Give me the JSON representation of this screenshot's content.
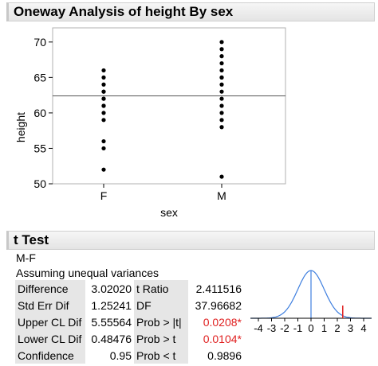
{
  "report": {
    "title": "Oneway Analysis of height By sex"
  },
  "plot": {
    "ylabel": "height",
    "xlabel": "sex",
    "categories": [
      "F",
      "M"
    ],
    "yticks": [
      "50",
      "55",
      "60",
      "65",
      "70"
    ]
  },
  "chart_data": {
    "type": "scatter",
    "title": "",
    "xlabel": "sex",
    "ylabel": "height",
    "ylim": [
      50,
      72
    ],
    "categories": [
      "F",
      "M"
    ],
    "series": [
      {
        "x": "F",
        "values": [
          52,
          55,
          56,
          59,
          60,
          61,
          61,
          62,
          62,
          63,
          63,
          64,
          65,
          66
        ]
      },
      {
        "x": "M",
        "values": [
          51,
          58,
          59,
          60,
          61,
          62,
          63,
          64,
          65,
          65,
          66,
          67,
          68,
          69,
          70
        ]
      }
    ],
    "grand_mean_line": 62.4
  },
  "ttest": {
    "title": "t Test",
    "contrast": "M-F",
    "assumption": "Assuming unequal variances",
    "rows": [
      {
        "label": "Difference",
        "value": "3.02020",
        "label2": "t Ratio",
        "value2": "2.411516",
        "sig": false
      },
      {
        "label": "Std Err Dif",
        "value": "1.25241",
        "label2": "DF",
        "value2": "37.96682",
        "sig": false
      },
      {
        "label": "Upper CL Dif",
        "value": "5.55564",
        "label2": "Prob > |t|",
        "value2": "0.0208*",
        "sig": true
      },
      {
        "label": "Lower CL Dif",
        "value": "0.48476",
        "label2": "Prob > t",
        "value2": "0.0104*",
        "sig": true
      },
      {
        "label": "Confidence",
        "value": "0.95",
        "label2": "Prob < t",
        "value2": "0.9896",
        "sig": false
      }
    ],
    "dist_ticks": [
      "-4",
      "-3",
      "-2",
      "-1",
      "0",
      "1",
      "2",
      "3",
      "4"
    ],
    "t_value": 2.411516,
    "colors": {
      "curve": "#3f7fdf",
      "marker": "#e02020",
      "sig_text": "#e02020"
    }
  }
}
